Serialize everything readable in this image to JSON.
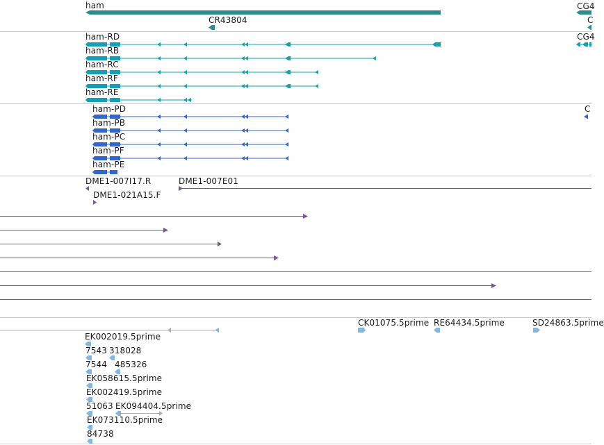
{
  "colors": {
    "gene": "#2e8b87",
    "transcript": "#12a1b3",
    "protein": "#3366cc",
    "clone": "#7a52a0",
    "est": "#86b6db",
    "divider": "#c9c9c9",
    "text": "#1b1b1b"
  },
  "tracks": {
    "genes": {
      "items": [
        {
          "name": "ham"
        },
        {
          "name": "CR43804"
        },
        {
          "name": "CG4"
        },
        {
          "name": "C"
        }
      ]
    },
    "transcripts": {
      "items": [
        {
          "name": "ham-RD"
        },
        {
          "name": "ham-RB"
        },
        {
          "name": "ham-RC"
        },
        {
          "name": "ham-RF"
        },
        {
          "name": "ham-RE"
        },
        {
          "name": "CG4"
        }
      ]
    },
    "proteins": {
      "items": [
        {
          "name": "ham-PD"
        },
        {
          "name": "ham-PB"
        },
        {
          "name": "ham-PC"
        },
        {
          "name": "ham-PF"
        },
        {
          "name": "ham-PE"
        },
        {
          "name": "C"
        }
      ]
    },
    "clones": {
      "items": [
        {
          "name": "DME1-007I17.R"
        },
        {
          "name": "DME1-007E01"
        },
        {
          "name": "DME1-021A15.F"
        }
      ]
    },
    "ests": {
      "items": [
        {
          "name": "CK01075.5prime"
        },
        {
          "name": "RE64434.5prime"
        },
        {
          "name": "SD24863.5prime"
        },
        {
          "name": "EK002019.5prime"
        },
        {
          "name": "7543"
        },
        {
          "name": "318028"
        },
        {
          "name": "7544"
        },
        {
          "name": "485326"
        },
        {
          "name": "EK058615.5prime"
        },
        {
          "name": "EK002419.5prime"
        },
        {
          "name": "51063"
        },
        {
          "name": "EK094404.5prime"
        },
        {
          "name": "EK073110.5prime"
        },
        {
          "name": "84738"
        }
      ]
    }
  }
}
